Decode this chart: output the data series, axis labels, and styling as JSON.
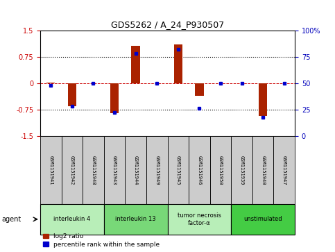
{
  "title": "GDS5262 / A_24_P930507",
  "samples": [
    "GSM1151941",
    "GSM1151942",
    "GSM1151948",
    "GSM1151943",
    "GSM1151944",
    "GSM1151949",
    "GSM1151945",
    "GSM1151946",
    "GSM1151950",
    "GSM1151939",
    "GSM1151940",
    "GSM1151947"
  ],
  "log2_ratio": [
    0.02,
    -0.65,
    0.0,
    -0.85,
    1.05,
    0.0,
    1.1,
    -0.35,
    0.0,
    0.0,
    -0.93,
    0.0
  ],
  "percentile_rank": [
    48,
    28,
    50,
    22,
    78,
    50,
    82,
    26,
    50,
    50,
    18,
    50
  ],
  "agents": [
    {
      "label": "interleukin 4",
      "start": 0,
      "end": 3,
      "color": "#b8eeb8"
    },
    {
      "label": "interleukin 13",
      "start": 3,
      "end": 6,
      "color": "#78d878"
    },
    {
      "label": "tumor necrosis\nfactor-α",
      "start": 6,
      "end": 9,
      "color": "#b8eeb8"
    },
    {
      "label": "unstimulated",
      "start": 9,
      "end": 12,
      "color": "#44cc44"
    }
  ],
  "ylim_left": [
    -1.5,
    1.5
  ],
  "ylim_right": [
    0,
    100
  ],
  "yticks_left": [
    -1.5,
    -0.75,
    0,
    0.75,
    1.5
  ],
  "yticks_right": [
    0,
    25,
    50,
    75,
    100
  ],
  "ytick_labels_left": [
    "-1.5",
    "-0.75",
    "0",
    "0.75",
    "1.5"
  ],
  "ytick_labels_right": [
    "0",
    "25",
    "50",
    "75",
    "100%"
  ],
  "dotted_lines": [
    -0.75,
    0.75
  ],
  "bar_color": "#aa2200",
  "marker_color": "#0000cc",
  "legend_items": [
    "log2 ratio",
    "percentile rank within the sample"
  ],
  "ylabel_left_color": "#cc0000",
  "ylabel_right_color": "#0000bb",
  "agent_label": "agent",
  "sample_cell_color": "#cccccc",
  "bar_width": 0.4
}
